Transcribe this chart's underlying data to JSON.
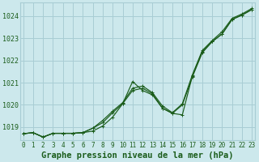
{
  "title": "Graphe pression niveau de la mer (hPa)",
  "ylabel_ticks": [
    1019,
    1020,
    1021,
    1022,
    1023,
    1024
  ],
  "xlim": [
    -0.3,
    23.3
  ],
  "ylim": [
    1018.4,
    1024.6
  ],
  "background_color": "#cce8ec",
  "grid_color": "#a8cdd4",
  "line_color": "#1a5c1a",
  "title_color": "#1a5c1a",
  "title_fontsize": 7.5,
  "tick_fontsize": 5.5,
  "line1": [
    1018.7,
    1018.75,
    1018.55,
    1018.72,
    1018.72,
    1018.72,
    1018.75,
    1018.82,
    1019.05,
    1019.45,
    1020.05,
    1021.05,
    1020.65,
    1020.45,
    1019.85,
    1019.62,
    1019.55,
    1021.3,
    1022.4,
    1022.85,
    1023.2,
    1023.85,
    1024.05,
    1024.3
  ],
  "line2": [
    1018.7,
    1018.75,
    1018.55,
    1018.72,
    1018.72,
    1018.72,
    1018.75,
    1018.95,
    1019.2,
    1019.65,
    1020.05,
    1020.65,
    1020.75,
    1020.5,
    1019.85,
    1019.62,
    1020.0,
    1021.25,
    1022.35,
    1022.85,
    1023.2,
    1023.85,
    1024.05,
    1024.3
  ],
  "line3": [
    1018.7,
    1018.75,
    1018.55,
    1018.72,
    1018.72,
    1018.72,
    1018.75,
    1018.95,
    1019.3,
    1019.72,
    1020.1,
    1020.75,
    1020.85,
    1020.55,
    1019.95,
    1019.65,
    1020.05,
    1021.35,
    1022.45,
    1022.9,
    1023.3,
    1023.9,
    1024.1,
    1024.35
  ]
}
